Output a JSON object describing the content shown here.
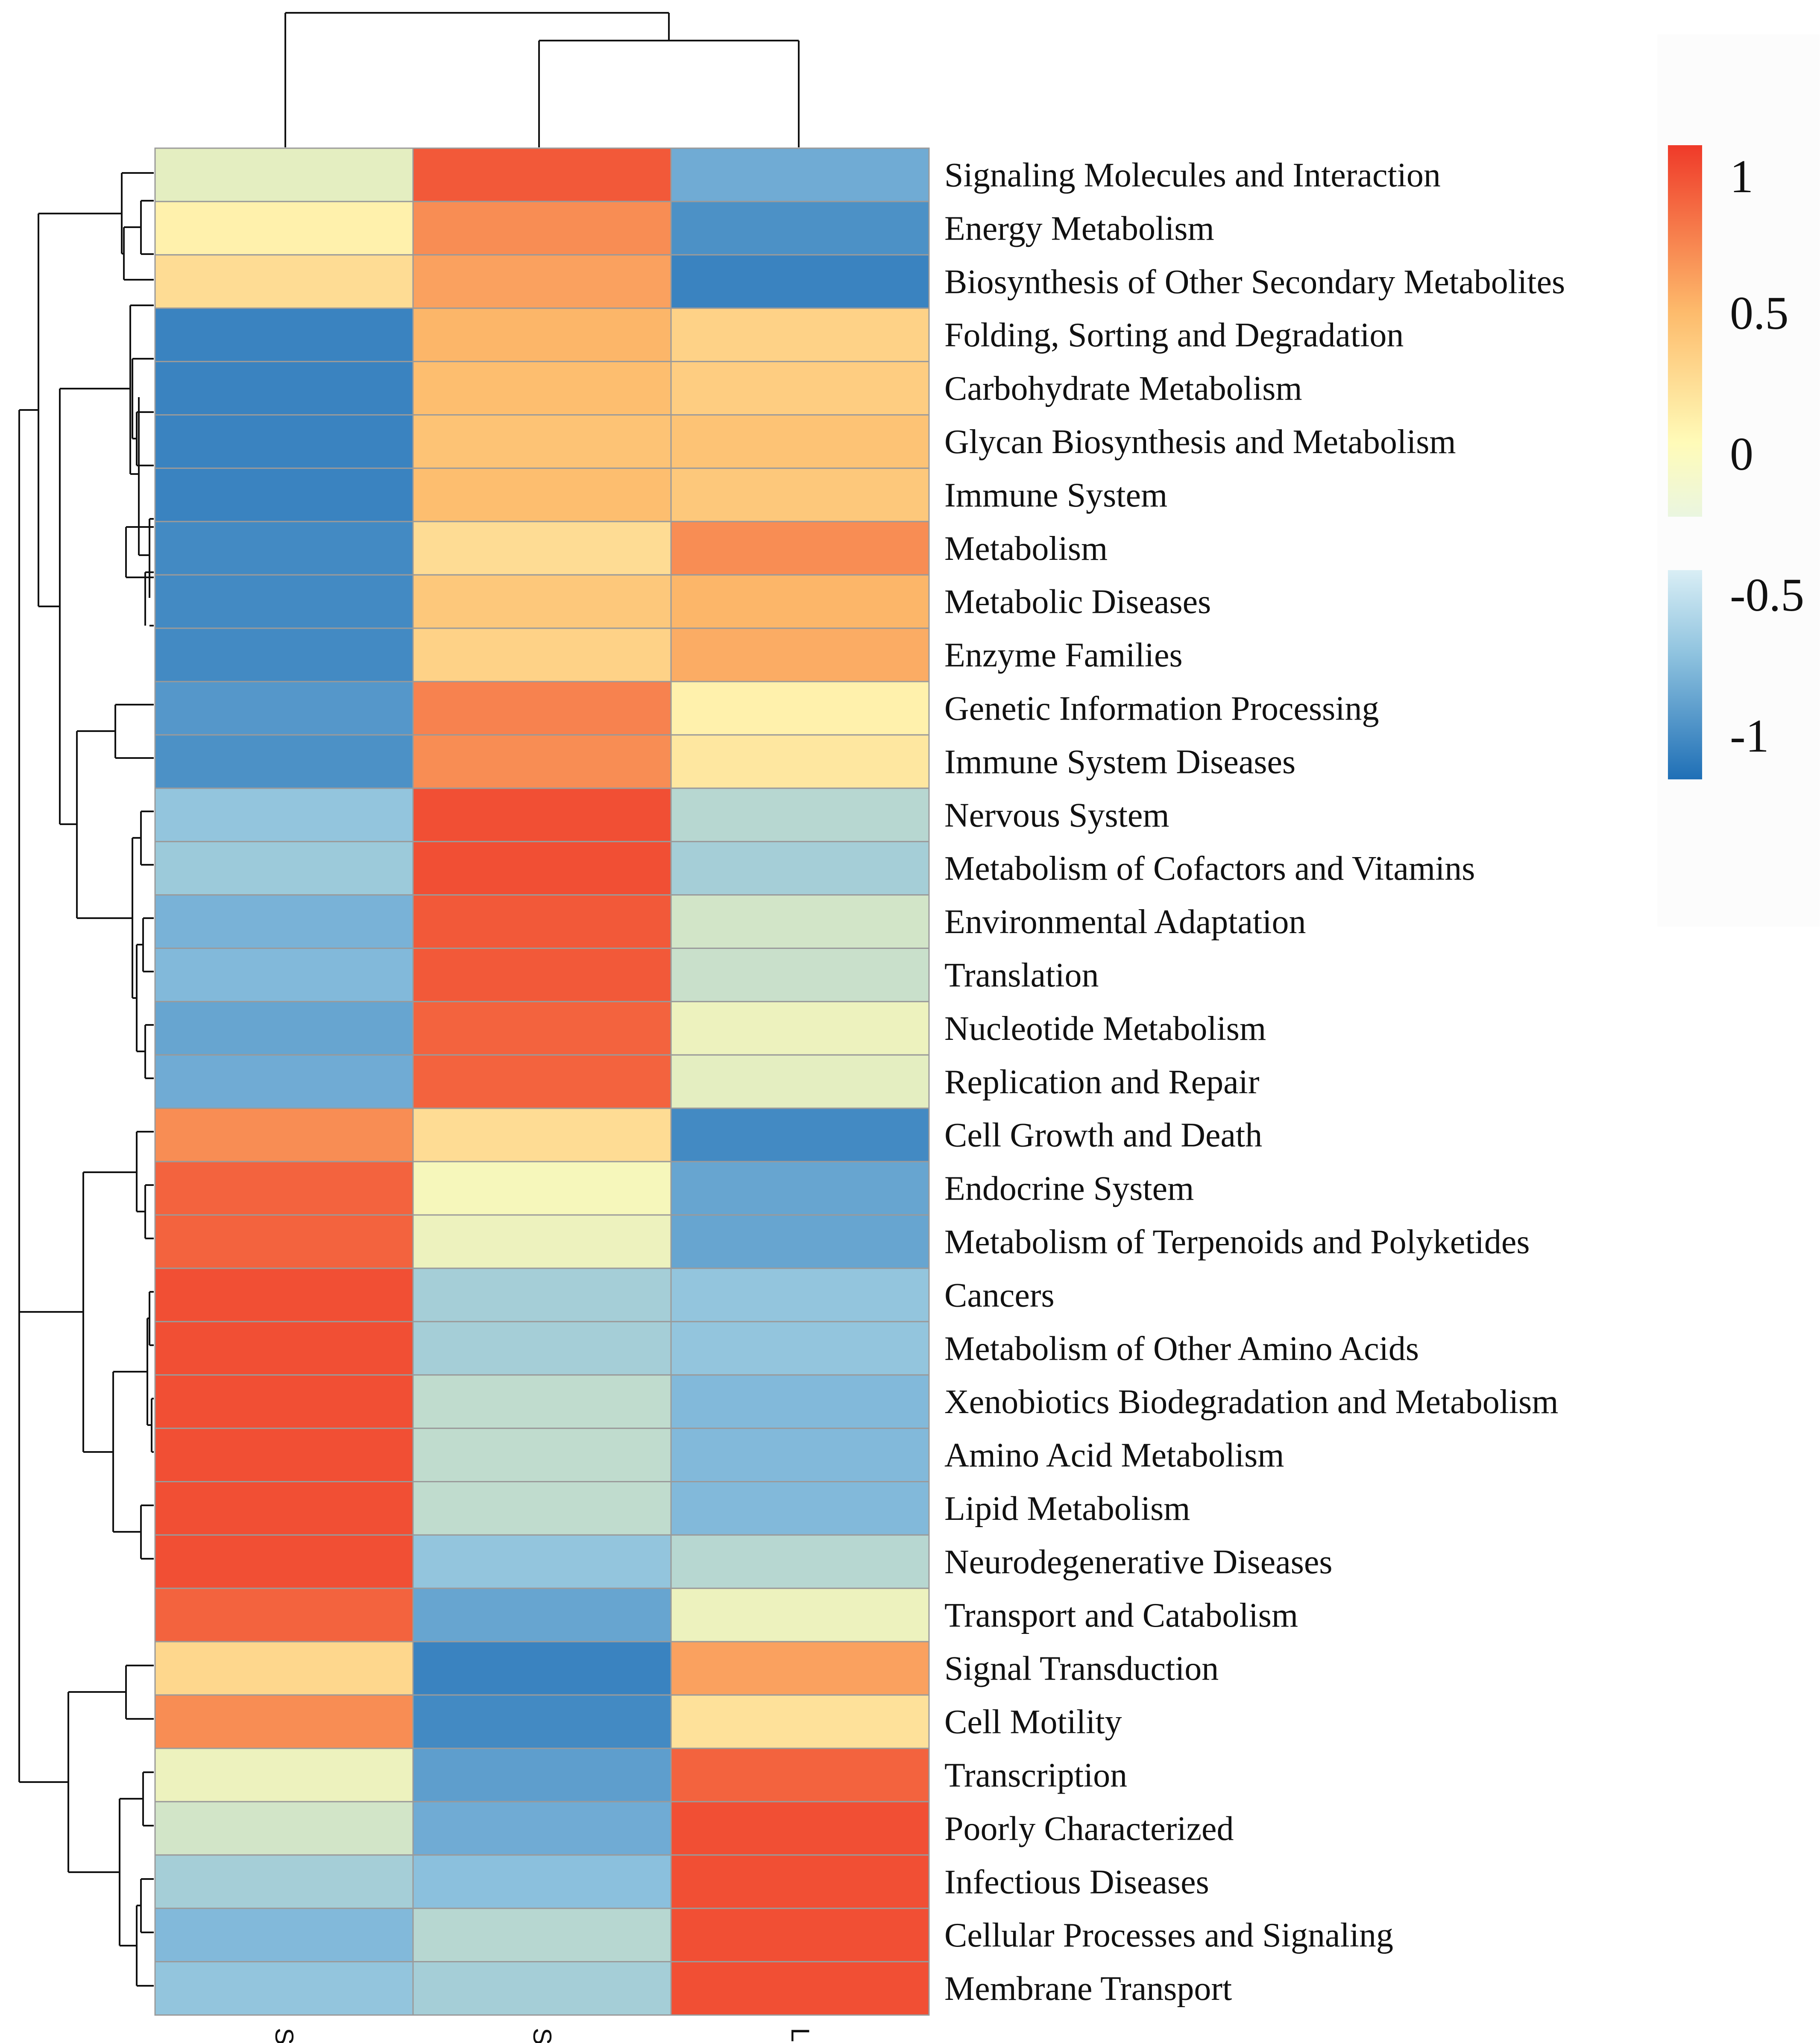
{
  "chart_data": {
    "type": "heatmap",
    "title": "",
    "columns": [
      "ST",
      "SI",
      "LI"
    ],
    "rows": [
      "Signaling Molecules and Interaction",
      "Energy Metabolism",
      "Biosynthesis of Other Secondary Metabolites",
      "Folding, Sorting and Degradation",
      "Carbohydrate Metabolism",
      "Glycan Biosynthesis and Metabolism",
      "Immune System",
      "Metabolism",
      "Metabolic Diseases",
      "Enzyme Families",
      "Genetic Information Processing",
      "Immune System Diseases",
      "Nervous System",
      "Metabolism of Cofactors and Vitamins",
      "Environmental Adaptation",
      "Translation",
      "Nucleotide Metabolism",
      "Replication and Repair",
      "Cell Growth and Death",
      "Endocrine System",
      "Metabolism of Terpenoids and Polyketides",
      "Cancers",
      "Metabolism of Other Amino Acids",
      "Xenobiotics Biodegradation and Metabolism",
      "Amino Acid Metabolism",
      "Lipid Metabolism",
      "Neurodegenerative Diseases",
      "Transport and Catabolism",
      "Signal Transduction",
      "Cell Motility",
      "Transcription",
      "Poorly Characterized",
      "Infectious Diseases",
      "Cellular Processes and Signaling",
      "Membrane Transport"
    ],
    "values": [
      [
        -0.15,
        1.1,
        -0.8
      ],
      [
        0.1,
        0.85,
        -1.0
      ],
      [
        0.3,
        0.75,
        -1.1
      ],
      [
        -1.1,
        0.65,
        0.4
      ],
      [
        -1.1,
        0.6,
        0.45
      ],
      [
        -1.1,
        0.55,
        0.55
      ],
      [
        -1.1,
        0.6,
        0.5
      ],
      [
        -1.05,
        0.3,
        0.85
      ],
      [
        -1.05,
        0.5,
        0.65
      ],
      [
        -1.05,
        0.4,
        0.7
      ],
      [
        -0.95,
        0.9,
        0.1
      ],
      [
        -1.0,
        0.85,
        0.2
      ],
      [
        -0.6,
        1.15,
        -0.4
      ],
      [
        -0.55,
        1.15,
        -0.5
      ],
      [
        -0.75,
        1.1,
        -0.25
      ],
      [
        -0.7,
        1.1,
        -0.3
      ],
      [
        -0.85,
        1.05,
        -0.1
      ],
      [
        -0.8,
        1.05,
        -0.15
      ],
      [
        0.85,
        0.3,
        -1.05
      ],
      [
        1.05,
        -0.05,
        -0.85
      ],
      [
        1.05,
        -0.1,
        -0.85
      ],
      [
        1.15,
        -0.5,
        -0.6
      ],
      [
        1.15,
        -0.5,
        -0.6
      ],
      [
        1.15,
        -0.35,
        -0.7
      ],
      [
        1.15,
        -0.35,
        -0.7
      ],
      [
        1.15,
        -0.35,
        -0.7
      ],
      [
        1.15,
        -0.6,
        -0.4
      ],
      [
        1.05,
        -0.85,
        -0.1
      ],
      [
        0.35,
        -1.1,
        0.75
      ],
      [
        0.85,
        -1.05,
        0.25
      ],
      [
        -0.1,
        -0.9,
        1.05
      ],
      [
        -0.25,
        -0.8,
        1.15
      ],
      [
        -0.5,
        -0.65,
        1.15
      ],
      [
        -0.7,
        -0.4,
        1.15
      ],
      [
        -0.6,
        -0.5,
        1.15
      ]
    ],
    "color_scale": {
      "min": -1.25,
      "max": 1.25,
      "low_color": "#1f6fb6",
      "mid_color": "#fffbb8",
      "high_color": "#ef3a29"
    },
    "legend_ticks": [
      "1",
      "0.5",
      "0",
      "-0.5",
      "-1"
    ],
    "row_clustering": true,
    "column_clustering": true
  }
}
